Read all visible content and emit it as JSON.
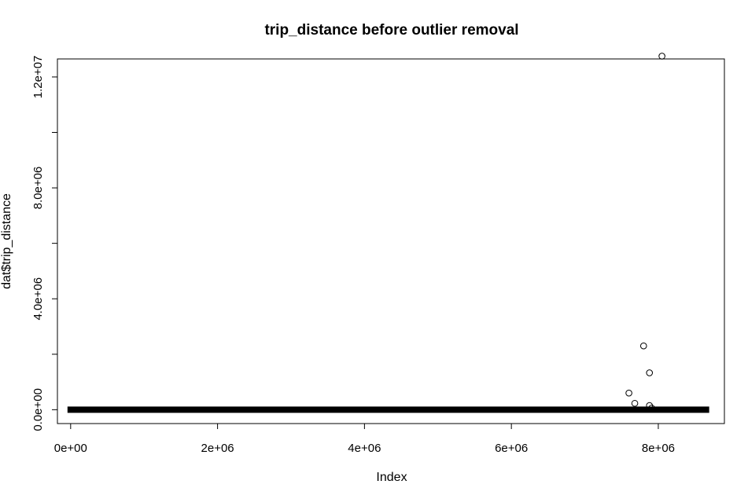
{
  "chart_data": {
    "type": "scatter",
    "title": "trip_distance before outlier removal",
    "xlabel": "Index",
    "ylabel": "dat$trip_distance",
    "xlim": [
      -180000,
      8900000
    ],
    "ylim": [
      -500000,
      12650000
    ],
    "x_ticks": [
      0,
      2000000,
      4000000,
      6000000,
      8000000
    ],
    "x_tick_labels": [
      "0e+00",
      "2e+06",
      "4e+06",
      "6e+06",
      "8e+06"
    ],
    "y_ticks": [
      0,
      2000000,
      4000000,
      6000000,
      8000000,
      10000000,
      12000000
    ],
    "y_tick_labels": [
      "0.0e+00",
      "",
      "4.0e+06",
      "",
      "8.0e+06",
      "",
      "1.2e+07"
    ],
    "baseline": {
      "x_start": 0,
      "x_end": 8650000,
      "y": 0
    },
    "points": [
      {
        "x": 7600000,
        "y": 600000
      },
      {
        "x": 7680000,
        "y": 230000
      },
      {
        "x": 7800000,
        "y": 2300000
      },
      {
        "x": 7880000,
        "y": 1330000
      },
      {
        "x": 7880000,
        "y": 150000
      },
      {
        "x": 7910000,
        "y": 60000
      },
      {
        "x": 8050000,
        "y": 12750000
      }
    ],
    "grid": false,
    "legend": "none"
  }
}
